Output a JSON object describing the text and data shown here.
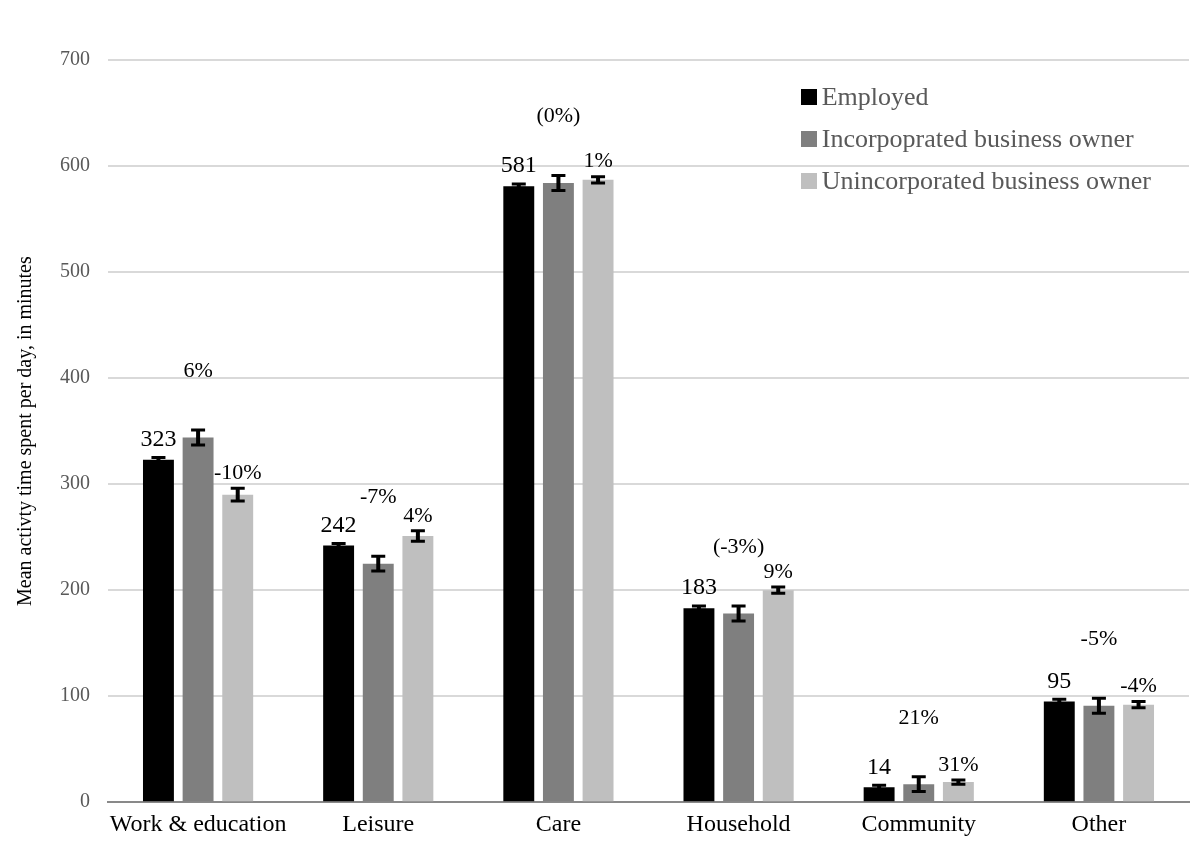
{
  "chart_data": {
    "type": "bar",
    "ylabel": "Mean activty time spent per day, in minutes",
    "categories": [
      "Work & education",
      "Leisure",
      "Care",
      "Household",
      "Community",
      "Other"
    ],
    "series": [
      {
        "name": "Employed",
        "color": "#000000",
        "values": [
          323,
          242,
          581,
          183,
          14,
          95
        ],
        "errors": [
          2,
          2,
          2,
          2,
          2,
          2
        ],
        "value_labels": [
          "323",
          "242",
          "581",
          "183",
          "14",
          "95"
        ]
      },
      {
        "name": "Incorpoprated business owner",
        "color": "#7f7f7f",
        "values": [
          344,
          225,
          584,
          178,
          17,
          91
        ],
        "errors": [
          7,
          7,
          7,
          7,
          7,
          7
        ]
      },
      {
        "name": "Unincorporated business owner",
        "color": "#bfbfbf",
        "values": [
          290,
          251,
          587,
          200,
          19,
          92
        ],
        "errors": [
          6,
          5,
          3,
          3,
          2,
          3
        ]
      }
    ],
    "annotations": [
      "6%",
      "-10%",
      "-7%",
      "4%",
      "(0%)",
      "1%",
      "(-3%)",
      "9%",
      "21%",
      "31%",
      "-5%",
      "-4%"
    ],
    "ylim": [
      0,
      700
    ],
    "yticks": [
      0,
      100,
      200,
      300,
      400,
      500,
      600,
      700
    ],
    "grid": "y",
    "legend": "top right"
  }
}
